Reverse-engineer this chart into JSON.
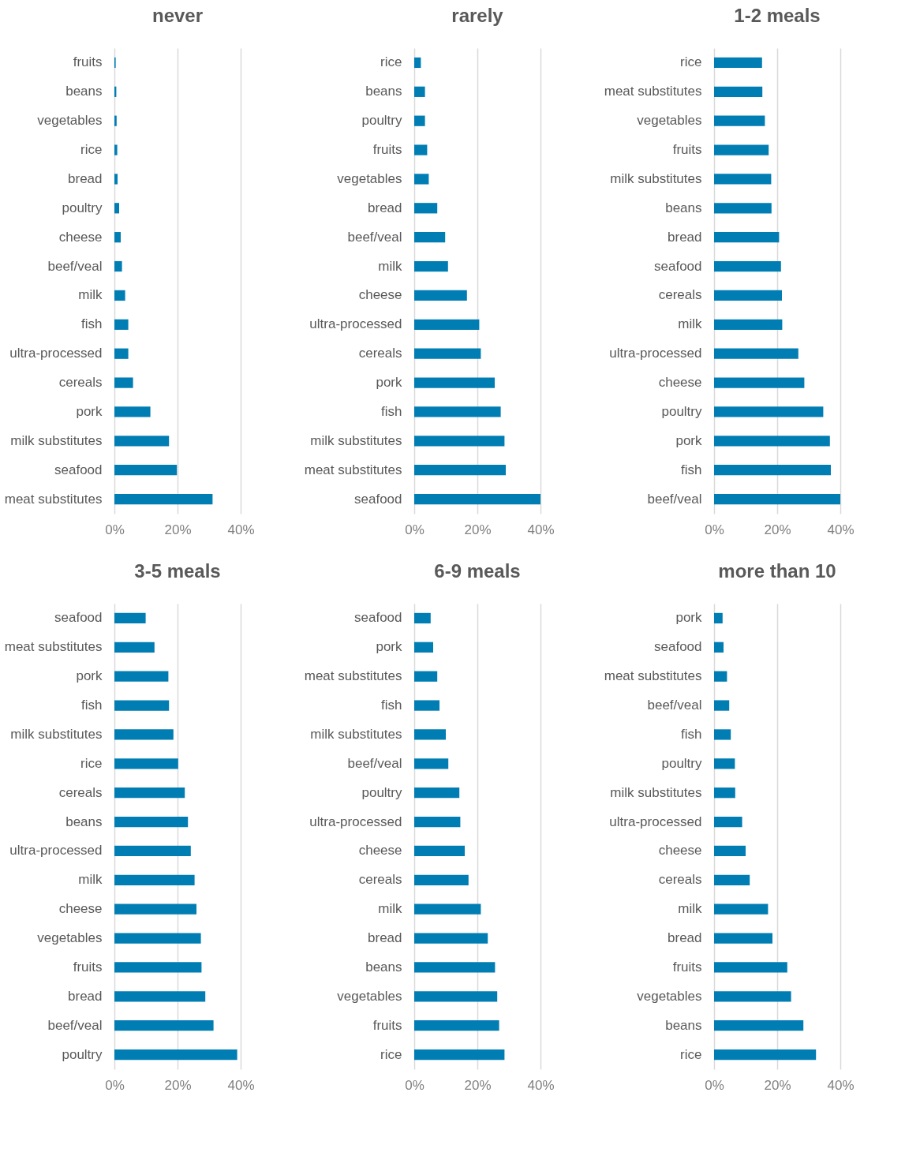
{
  "chart_data": [
    {
      "type": "bar",
      "orientation": "horizontal",
      "title": "never",
      "categories": [
        "fruits",
        "beans",
        "vegetables",
        "rice",
        "bread",
        "poultry",
        "cheese",
        "beef/veal",
        "milk",
        "fish",
        "ultra-processed",
        "cereals",
        "pork",
        "milk substitutes",
        "seafood",
        "meat substitutes"
      ],
      "values": [
        0.4,
        0.6,
        0.7,
        0.9,
        1.0,
        1.5,
        2.0,
        2.4,
        3.4,
        4.4,
        4.4,
        5.9,
        11.4,
        17.3,
        19.8,
        31.1
      ],
      "color": "#007db3",
      "xlim": [
        0,
        40
      ],
      "xticks": [
        {
          "value": 0,
          "label": "0%"
        },
        {
          "value": 20,
          "label": "20%"
        },
        {
          "value": 40,
          "label": "40%"
        }
      ],
      "grid": "x"
    },
    {
      "type": "bar",
      "orientation": "horizontal",
      "title": "rarely",
      "categories": [
        "rice",
        "beans",
        "poultry",
        "fruits",
        "vegetables",
        "bread",
        "beef/veal",
        "milk",
        "cheese",
        "ultra-processed",
        "cereals",
        "pork",
        "fish",
        "milk substitutes",
        "meat substitutes",
        "seafood"
      ],
      "values": [
        2.1,
        3.4,
        3.4,
        4.1,
        4.6,
        7.3,
        9.8,
        10.7,
        16.7,
        20.6,
        21.1,
        25.5,
        27.4,
        28.6,
        29.0,
        40.0
      ],
      "color": "#007db3",
      "xlim": [
        0,
        40
      ],
      "xticks": [
        {
          "value": 0,
          "label": "0%"
        },
        {
          "value": 20,
          "label": "20%"
        },
        {
          "value": 40,
          "label": "40%"
        }
      ],
      "grid": "x"
    },
    {
      "type": "bar",
      "orientation": "horizontal",
      "title": "1-2 meals",
      "categories": [
        "rice",
        "meat substitutes",
        "vegetables",
        "fruits",
        "milk substitutes",
        "beans",
        "bread",
        "seafood",
        "cereals",
        "milk",
        "ultra-processed",
        "cheese",
        "poultry",
        "pork",
        "fish",
        "beef/veal"
      ],
      "values": [
        15.2,
        15.3,
        16.1,
        17.3,
        18.1,
        18.2,
        20.6,
        21.2,
        21.5,
        21.6,
        26.7,
        28.6,
        34.6,
        36.7,
        37.0,
        40.0
      ],
      "color": "#007db3",
      "xlim": [
        0,
        40
      ],
      "xticks": [
        {
          "value": 0,
          "label": "0%"
        },
        {
          "value": 20,
          "label": "20%"
        },
        {
          "value": 40,
          "label": "40%"
        }
      ],
      "grid": "x"
    },
    {
      "type": "bar",
      "orientation": "horizontal",
      "title": "3-5 meals",
      "categories": [
        "seafood",
        "meat substitutes",
        "pork",
        "fish",
        "milk substitutes",
        "rice",
        "cereals",
        "beans",
        "ultra-processed",
        "milk",
        "cheese",
        "vegetables",
        "fruits",
        "bread",
        "beef/veal",
        "poultry"
      ],
      "values": [
        9.9,
        12.7,
        17.1,
        17.3,
        18.7,
        20.2,
        22.3,
        23.3,
        24.2,
        25.4,
        26.0,
        27.4,
        27.6,
        28.8,
        31.4,
        38.9
      ],
      "color": "#007db3",
      "xlim": [
        0,
        40
      ],
      "xticks": [
        {
          "value": 0,
          "label": "0%"
        },
        {
          "value": 20,
          "label": "20%"
        },
        {
          "value": 40,
          "label": "40%"
        }
      ],
      "grid": "x"
    },
    {
      "type": "bar",
      "orientation": "horizontal",
      "title": "6-9 meals",
      "categories": [
        "seafood",
        "pork",
        "meat substitutes",
        "fish",
        "milk substitutes",
        "beef/veal",
        "poultry",
        "ultra-processed",
        "cheese",
        "cereals",
        "milk",
        "bread",
        "beans",
        "vegetables",
        "fruits",
        "rice"
      ],
      "values": [
        5.2,
        6.0,
        7.3,
        8.0,
        10.0,
        10.8,
        14.3,
        14.6,
        16.0,
        17.2,
        21.1,
        23.3,
        25.6,
        26.3,
        26.9,
        28.6
      ],
      "color": "#007db3",
      "xlim": [
        0,
        40
      ],
      "xticks": [
        {
          "value": 0,
          "label": "0%"
        },
        {
          "value": 20,
          "label": "20%"
        },
        {
          "value": 40,
          "label": "40%"
        }
      ],
      "grid": "x"
    },
    {
      "type": "bar",
      "orientation": "horizontal",
      "title": "more than 10",
      "categories": [
        "pork",
        "seafood",
        "meat substitutes",
        "beef/veal",
        "fish",
        "poultry",
        "milk substitutes",
        "ultra-processed",
        "cheese",
        "cereals",
        "milk",
        "bread",
        "fruits",
        "vegetables",
        "beans",
        "rice"
      ],
      "values": [
        2.7,
        3.0,
        4.1,
        4.8,
        5.3,
        6.6,
        6.7,
        8.9,
        10.0,
        11.3,
        17.1,
        18.5,
        23.2,
        24.4,
        28.3,
        32.3
      ],
      "color": "#007db3",
      "xlim": [
        0,
        40
      ],
      "xticks": [
        {
          "value": 0,
          "label": "0%"
        },
        {
          "value": 20,
          "label": "20%"
        },
        {
          "value": 40,
          "label": "40%"
        }
      ],
      "grid": "x"
    }
  ]
}
